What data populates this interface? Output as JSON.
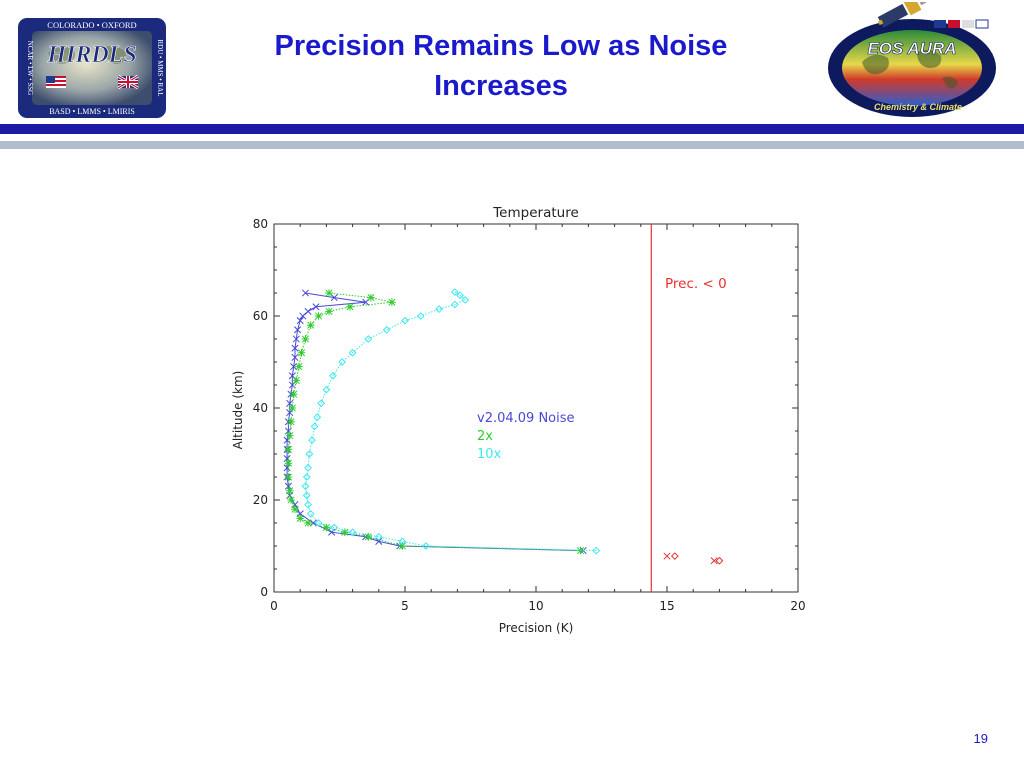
{
  "slide": {
    "title_line1": "Precision Remains Low as Noise",
    "title_line2": "Increases",
    "page_number": "19"
  },
  "hirdls_logo": {
    "name": "HIRDLS",
    "top_text": "COLORADO • OXFORD",
    "bottom_text": "BASD • LMMS • LMIRIS",
    "left_text": "NCAR • LW • SSG",
    "right_text": "RDU • MMS • RAL",
    "icon": "us-uk-flags-globe"
  },
  "aura_logo": {
    "name": "EOS AURA",
    "tagline": "Chemistry & Climate",
    "icon": "satellite-earth-map"
  },
  "colors": {
    "title": "#1a1acc",
    "rule_dark": "#1c1aa6",
    "rule_light": "#b4bdd0",
    "series_v2": "#4848d8",
    "series_2x": "#2ecc2e",
    "series_10x": "#3ee6ee",
    "prec_negative": "#e83030"
  },
  "chart_data": {
    "type": "line",
    "title": "Temperature",
    "xlabel": "Precision (K)",
    "ylabel": "Altitude (km)",
    "xlim": [
      0,
      20
    ],
    "ylim": [
      0,
      80
    ],
    "xticks": [
      0,
      5,
      10,
      15,
      20
    ],
    "yticks": [
      0,
      20,
      40,
      60,
      80
    ],
    "grid": false,
    "legend_position": "center",
    "legend": [
      "v2.04.09 Noise",
      "2x",
      "10x"
    ],
    "series": [
      {
        "name": "v2.04.09 Noise",
        "color": "#4848d8",
        "marker": "x",
        "points": [
          [
            11.8,
            9
          ],
          [
            4.8,
            10
          ],
          [
            4.0,
            11
          ],
          [
            3.5,
            12
          ],
          [
            2.2,
            13
          ],
          [
            1.5,
            15
          ],
          [
            1.0,
            17
          ],
          [
            0.8,
            19
          ],
          [
            0.6,
            21
          ],
          [
            0.55,
            23
          ],
          [
            0.5,
            25
          ],
          [
            0.5,
            27
          ],
          [
            0.5,
            29
          ],
          [
            0.5,
            31
          ],
          [
            0.5,
            33
          ],
          [
            0.55,
            35
          ],
          [
            0.55,
            37
          ],
          [
            0.6,
            39
          ],
          [
            0.6,
            41
          ],
          [
            0.65,
            43
          ],
          [
            0.7,
            45
          ],
          [
            0.7,
            47
          ],
          [
            0.75,
            49
          ],
          [
            0.8,
            51
          ],
          [
            0.8,
            53
          ],
          [
            0.85,
            55
          ],
          [
            0.9,
            57
          ],
          [
            1.0,
            59
          ],
          [
            1.1,
            60
          ],
          [
            1.3,
            61
          ],
          [
            1.6,
            62
          ],
          [
            3.5,
            63
          ],
          [
            2.3,
            64
          ],
          [
            1.2,
            65
          ]
        ]
      },
      {
        "name": "2x",
        "color": "#2ecc2e",
        "marker": "*",
        "points": [
          [
            11.7,
            9
          ],
          [
            4.9,
            10
          ],
          [
            3.6,
            12
          ],
          [
            2.7,
            13
          ],
          [
            2.0,
            14
          ],
          [
            1.3,
            15
          ],
          [
            1.0,
            16
          ],
          [
            0.8,
            18
          ],
          [
            0.65,
            20
          ],
          [
            0.6,
            22
          ],
          [
            0.55,
            25
          ],
          [
            0.55,
            28
          ],
          [
            0.55,
            31
          ],
          [
            0.6,
            34
          ],
          [
            0.65,
            37
          ],
          [
            0.7,
            40
          ],
          [
            0.75,
            43
          ],
          [
            0.85,
            46
          ],
          [
            0.95,
            49
          ],
          [
            1.05,
            52
          ],
          [
            1.2,
            55
          ],
          [
            1.4,
            58
          ],
          [
            1.7,
            60
          ],
          [
            2.1,
            61
          ],
          [
            2.9,
            62
          ],
          [
            4.5,
            63
          ],
          [
            3.7,
            64
          ],
          [
            2.1,
            65
          ]
        ]
      },
      {
        "name": "10x",
        "color": "#3ee6ee",
        "marker": "diamond",
        "points": [
          [
            12.3,
            9
          ],
          [
            5.8,
            10
          ],
          [
            4.9,
            11
          ],
          [
            4.0,
            12
          ],
          [
            3.0,
            13
          ],
          [
            2.3,
            14
          ],
          [
            1.7,
            15
          ],
          [
            1.4,
            17
          ],
          [
            1.3,
            19
          ],
          [
            1.25,
            21
          ],
          [
            1.2,
            23
          ],
          [
            1.25,
            25
          ],
          [
            1.3,
            27
          ],
          [
            1.35,
            30
          ],
          [
            1.45,
            33
          ],
          [
            1.55,
            36
          ],
          [
            1.65,
            38
          ],
          [
            1.8,
            41
          ],
          [
            2.0,
            44
          ],
          [
            2.25,
            47
          ],
          [
            2.6,
            50
          ],
          [
            3.0,
            52
          ],
          [
            3.6,
            55
          ],
          [
            4.3,
            57
          ],
          [
            5.0,
            59
          ],
          [
            5.6,
            60
          ],
          [
            6.3,
            61.5
          ],
          [
            6.9,
            62.5
          ],
          [
            7.3,
            63.5
          ],
          [
            7.1,
            64.5
          ],
          [
            6.9,
            65.2
          ]
        ]
      }
    ],
    "annotations": [
      {
        "text": "Prec. < 0",
        "color": "#e83030"
      }
    ],
    "reference_line": {
      "x": 14.4,
      "color": "#e83030"
    },
    "prec_negative_points": [
      [
        15.0,
        7.8
      ],
      [
        15.3,
        7.8
      ],
      [
        16.8,
        6.8
      ],
      [
        17.0,
        6.8
      ]
    ]
  }
}
